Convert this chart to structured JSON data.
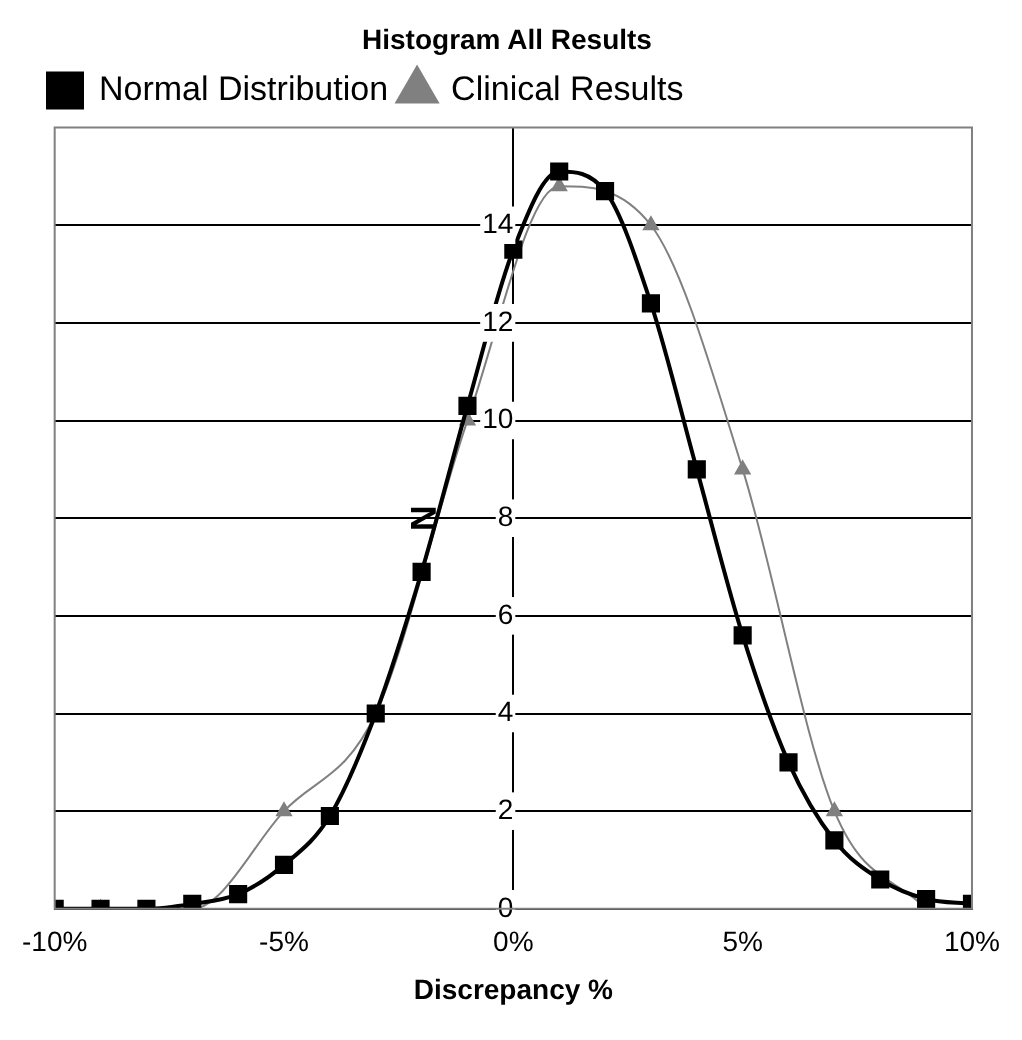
{
  "chart_data": {
    "type": "line",
    "title": "Histogram All Results",
    "xlabel": "Discrepancy %",
    "ylabel": "N",
    "xlim": [
      -10,
      10
    ],
    "xticks": [
      {
        "value": -10,
        "label": "-10%"
      },
      {
        "value": -5,
        "label": "-5%"
      },
      {
        "value": 0,
        "label": "0%"
      },
      {
        "value": 5,
        "label": "5%"
      },
      {
        "value": 10,
        "label": "10%"
      }
    ],
    "ylim": [
      0,
      16
    ],
    "yticks": [
      0,
      2,
      4,
      6,
      8,
      10,
      12,
      14
    ],
    "grid": "y",
    "legend": "top left",
    "series": [
      {
        "name": "Normal Distribution",
        "color": "#000000",
        "marker": "square",
        "x": [
          -10,
          -9,
          -8,
          -7,
          -6,
          -5,
          -4,
          -3,
          -2,
          -1,
          0,
          1,
          2,
          3,
          4,
          5,
          6,
          7,
          8,
          9,
          10
        ],
        "values": [
          0,
          0,
          0,
          0.1,
          0.3,
          0.9,
          1.9,
          4,
          6.9,
          10.3,
          13.5,
          15.1,
          14.7,
          12.4,
          9,
          5.6,
          3,
          1.4,
          0.6,
          0.2,
          0.1
        ]
      },
      {
        "name": "Clinical Results",
        "color": "#808080",
        "marker": "triangle",
        "x": [
          -9,
          -7,
          -5,
          -3,
          -1,
          1,
          3,
          5,
          7,
          9
        ],
        "values": [
          0,
          0,
          2,
          4,
          10,
          14.8,
          14,
          9,
          2,
          0
        ]
      }
    ]
  }
}
